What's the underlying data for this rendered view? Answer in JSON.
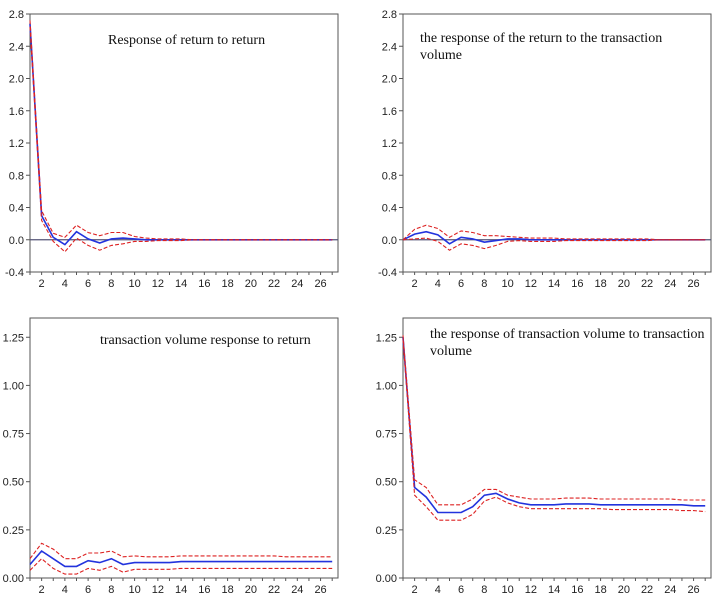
{
  "colors": {
    "estimate": "#2233dd",
    "band": "#dd2222",
    "axis": "#555555",
    "zero_line": "#555577",
    "text": "#222222"
  },
  "chart_data": [
    {
      "type": "line",
      "title_lines": [
        "Response of return to return"
      ],
      "xlabel": "",
      "ylabel": "",
      "xlim": [
        1,
        27.5
      ],
      "ylim": [
        -0.4,
        2.8
      ],
      "yticks": [
        "-0.4",
        "0.0",
        "0.4",
        "0.8",
        "1.2",
        "1.6",
        "2.0",
        "2.4",
        "2.8"
      ],
      "xticks": [
        "2",
        "4",
        "6",
        "8",
        "10",
        "12",
        "14",
        "16",
        "18",
        "20",
        "22",
        "24",
        "26"
      ],
      "zero_line": true,
      "x": [
        1,
        2,
        3,
        4,
        5,
        6,
        7,
        8,
        9,
        10,
        11,
        12,
        13,
        14,
        15,
        16,
        17,
        18,
        19,
        20,
        21,
        22,
        23,
        24,
        25,
        26,
        27
      ],
      "series": [
        {
          "role": "estimate",
          "style": "solid",
          "values": [
            2.68,
            0.3,
            0.03,
            -0.06,
            0.1,
            0.01,
            -0.04,
            0.01,
            0.02,
            0.01,
            0.0,
            0.0,
            0.0,
            0.0,
            0.0,
            0.0,
            0.0,
            0.0,
            0.0,
            0.0,
            0.0,
            0.0,
            0.0,
            0.0,
            0.0,
            0.0,
            0.0
          ]
        },
        {
          "role": "upper",
          "style": "dashed",
          "values": [
            2.72,
            0.36,
            0.08,
            0.03,
            0.18,
            0.09,
            0.05,
            0.09,
            0.09,
            0.04,
            0.02,
            0.01,
            0.01,
            0.01,
            0.0,
            0.0,
            0.0,
            0.0,
            0.0,
            0.0,
            0.0,
            0.0,
            0.0,
            0.0,
            0.0,
            0.0,
            0.0
          ]
        },
        {
          "role": "lower",
          "style": "dashed",
          "values": [
            2.64,
            0.24,
            -0.02,
            -0.15,
            0.02,
            -0.07,
            -0.13,
            -0.07,
            -0.05,
            -0.02,
            -0.02,
            -0.01,
            -0.01,
            -0.01,
            0.0,
            0.0,
            0.0,
            0.0,
            0.0,
            0.0,
            0.0,
            0.0,
            0.0,
            0.0,
            0.0,
            0.0,
            0.0
          ]
        }
      ]
    },
    {
      "type": "line",
      "title_lines": [
        "the response of the return to the transaction",
        "volume"
      ],
      "xlabel": "",
      "ylabel": "",
      "xlim": [
        1,
        27.5
      ],
      "ylim": [
        -0.4,
        2.8
      ],
      "yticks": [
        "-0.4",
        "0.0",
        "0.4",
        "0.8",
        "1.2",
        "1.6",
        "2.0",
        "2.4",
        "2.8"
      ],
      "xticks": [
        "2",
        "4",
        "6",
        "8",
        "10",
        "12",
        "14",
        "16",
        "18",
        "20",
        "22",
        "24",
        "26"
      ],
      "zero_line": true,
      "x": [
        1,
        2,
        3,
        4,
        5,
        6,
        7,
        8,
        9,
        10,
        11,
        12,
        13,
        14,
        15,
        16,
        17,
        18,
        19,
        20,
        21,
        22,
        23,
        24,
        25,
        26,
        27
      ],
      "series": [
        {
          "role": "estimate",
          "style": "solid",
          "values": [
            0.0,
            0.07,
            0.1,
            0.06,
            -0.05,
            0.03,
            0.01,
            -0.03,
            -0.01,
            0.01,
            0.01,
            0.0,
            0.0,
            0.0,
            0.0,
            0.0,
            0.0,
            0.0,
            0.0,
            0.0,
            0.0,
            0.0,
            0.0,
            0.0,
            0.0,
            0.0,
            0.0
          ]
        },
        {
          "role": "upper",
          "style": "dashed",
          "values": [
            0.0,
            0.13,
            0.18,
            0.14,
            0.03,
            0.11,
            0.09,
            0.05,
            0.05,
            0.04,
            0.03,
            0.02,
            0.02,
            0.02,
            0.01,
            0.01,
            0.01,
            0.01,
            0.01,
            0.01,
            0.01,
            0.01,
            0.0,
            0.0,
            0.0,
            0.0,
            0.0
          ]
        },
        {
          "role": "lower",
          "style": "dashed",
          "values": [
            0.0,
            0.01,
            0.02,
            -0.02,
            -0.13,
            -0.05,
            -0.07,
            -0.11,
            -0.07,
            -0.02,
            -0.01,
            -0.02,
            -0.02,
            -0.02,
            -0.01,
            -0.01,
            -0.01,
            -0.01,
            -0.01,
            -0.01,
            -0.01,
            -0.01,
            0.0,
            0.0,
            0.0,
            0.0,
            0.0
          ]
        }
      ]
    },
    {
      "type": "line",
      "title_lines": [
        "transaction volume response to return"
      ],
      "xlabel": "",
      "ylabel": "",
      "xlim": [
        1,
        27.5
      ],
      "ylim": [
        0.0,
        1.35
      ],
      "yticks": [
        "0.00",
        "0.25",
        "0.50",
        "0.75",
        "1.00",
        "1.25"
      ],
      "xticks": [
        "2",
        "4",
        "6",
        "8",
        "10",
        "12",
        "14",
        "16",
        "18",
        "20",
        "22",
        "24",
        "26"
      ],
      "zero_line": false,
      "x": [
        1,
        2,
        3,
        4,
        5,
        6,
        7,
        8,
        9,
        10,
        11,
        12,
        13,
        14,
        15,
        16,
        17,
        18,
        19,
        20,
        21,
        22,
        23,
        24,
        25,
        26,
        27
      ],
      "series": [
        {
          "role": "estimate",
          "style": "solid",
          "values": [
            0.07,
            0.14,
            0.1,
            0.06,
            0.06,
            0.09,
            0.08,
            0.1,
            0.07,
            0.08,
            0.08,
            0.08,
            0.08,
            0.085,
            0.085,
            0.085,
            0.085,
            0.085,
            0.085,
            0.085,
            0.085,
            0.085,
            0.085,
            0.085,
            0.085,
            0.085,
            0.085
          ]
        },
        {
          "role": "upper",
          "style": "dashed",
          "values": [
            0.1,
            0.18,
            0.15,
            0.1,
            0.1,
            0.13,
            0.13,
            0.14,
            0.11,
            0.115,
            0.11,
            0.11,
            0.11,
            0.115,
            0.115,
            0.115,
            0.115,
            0.115,
            0.115,
            0.115,
            0.115,
            0.115,
            0.11,
            0.11,
            0.11,
            0.11,
            0.11
          ]
        },
        {
          "role": "lower",
          "style": "dashed",
          "values": [
            0.04,
            0.1,
            0.05,
            0.02,
            0.02,
            0.05,
            0.04,
            0.06,
            0.03,
            0.045,
            0.045,
            0.045,
            0.045,
            0.05,
            0.05,
            0.05,
            0.05,
            0.05,
            0.05,
            0.05,
            0.05,
            0.05,
            0.05,
            0.05,
            0.05,
            0.05,
            0.05
          ]
        }
      ]
    },
    {
      "type": "line",
      "title_lines": [
        "the response of transaction volume to transaction",
        "volume"
      ],
      "xlabel": "",
      "ylabel": "",
      "xlim": [
        1,
        27.5
      ],
      "ylim": [
        0.0,
        1.35
      ],
      "yticks": [
        "0.00",
        "0.25",
        "0.50",
        "0.75",
        "1.00",
        "1.25"
      ],
      "xticks": [
        "2",
        "4",
        "6",
        "8",
        "10",
        "12",
        "14",
        "16",
        "18",
        "20",
        "22",
        "24",
        "26"
      ],
      "zero_line": false,
      "x": [
        1,
        2,
        3,
        4,
        5,
        6,
        7,
        8,
        9,
        10,
        11,
        12,
        13,
        14,
        15,
        16,
        17,
        18,
        19,
        20,
        21,
        22,
        23,
        24,
        25,
        26,
        27
      ],
      "series": [
        {
          "role": "estimate",
          "style": "solid",
          "values": [
            1.25,
            0.47,
            0.42,
            0.34,
            0.34,
            0.34,
            0.37,
            0.43,
            0.44,
            0.41,
            0.39,
            0.38,
            0.38,
            0.38,
            0.385,
            0.385,
            0.385,
            0.38,
            0.38,
            0.38,
            0.38,
            0.38,
            0.38,
            0.38,
            0.38,
            0.375,
            0.375
          ]
        },
        {
          "role": "upper",
          "style": "dashed",
          "values": [
            1.26,
            0.51,
            0.47,
            0.38,
            0.38,
            0.38,
            0.41,
            0.46,
            0.46,
            0.43,
            0.42,
            0.41,
            0.41,
            0.41,
            0.415,
            0.415,
            0.415,
            0.41,
            0.41,
            0.41,
            0.41,
            0.41,
            0.41,
            0.41,
            0.405,
            0.405,
            0.405
          ]
        },
        {
          "role": "lower",
          "style": "dashed",
          "values": [
            1.24,
            0.43,
            0.37,
            0.3,
            0.3,
            0.3,
            0.33,
            0.4,
            0.42,
            0.39,
            0.37,
            0.36,
            0.36,
            0.36,
            0.36,
            0.36,
            0.36,
            0.36,
            0.355,
            0.355,
            0.355,
            0.355,
            0.355,
            0.355,
            0.35,
            0.35,
            0.345
          ]
        }
      ]
    }
  ]
}
